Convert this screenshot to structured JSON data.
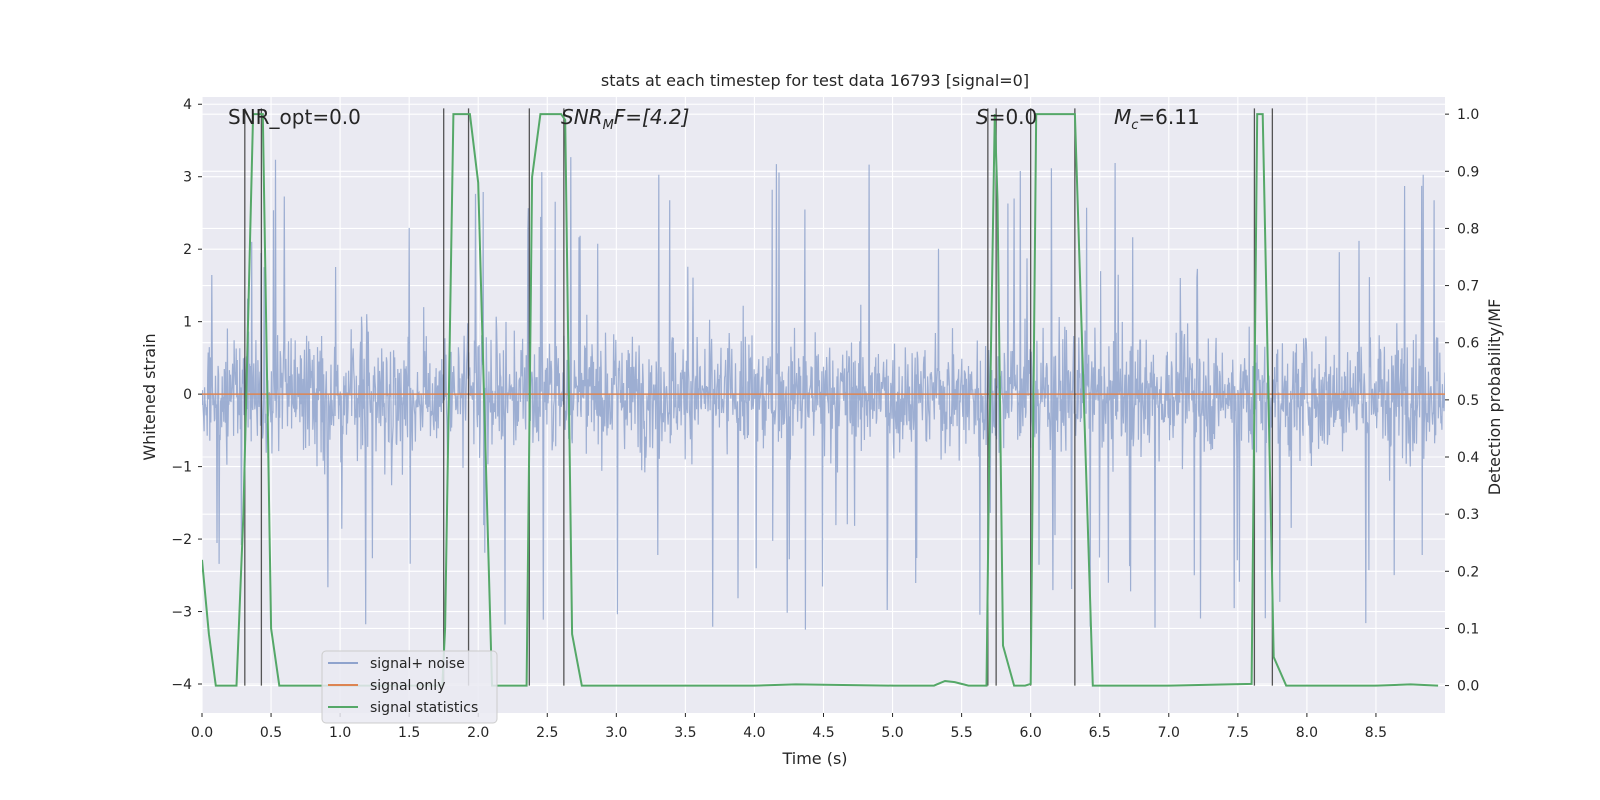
{
  "chart_data": {
    "type": "line",
    "title": "stats at each timestep for test data 16793 [signal=0]",
    "xlabel": "Time (s)",
    "ylabel_left": "Whitened strain",
    "ylabel_right": "Detection probability/MF",
    "xlim": [
      0.0,
      9.0
    ],
    "ylim_left": [
      -4.4,
      4.1
    ],
    "ylim_right": [
      -0.048,
      1.03
    ],
    "x_ticks": [
      0.0,
      0.5,
      1.0,
      1.5,
      2.0,
      2.5,
      3.0,
      3.5,
      4.0,
      4.5,
      5.0,
      5.5,
      6.0,
      6.5,
      7.0,
      7.5,
      8.0,
      8.5
    ],
    "x_tick_labels": [
      "0.0",
      "0.5",
      "1.0",
      "1.5",
      "2.0",
      "2.5",
      "3.0",
      "3.5",
      "4.0",
      "4.5",
      "5.0",
      "5.5",
      "6.0",
      "6.5",
      "7.0",
      "7.5",
      "8.0",
      "8.5"
    ],
    "y_left_ticks": [
      -4,
      -3,
      -2,
      -1,
      0,
      1,
      2,
      3,
      4
    ],
    "y_left_tick_labels": [
      "−4",
      "−3",
      "−2",
      "−1",
      "0",
      "1",
      "2",
      "3",
      "4"
    ],
    "y_right_ticks": [
      0.0,
      0.1,
      0.2,
      0.3,
      0.4,
      0.5,
      0.6,
      0.7,
      0.8,
      0.9,
      1.0
    ],
    "y_right_tick_labels": [
      "0.0",
      "0.1",
      "0.2",
      "0.3",
      "0.4",
      "0.5",
      "0.6",
      "0.7",
      "0.8",
      "0.9",
      "1.0"
    ],
    "annotations": {
      "snr_opt": "SNR_opt=0.0",
      "snr_mf_main": "SNR",
      "snr_mf_sub": "M",
      "snr_mf_rest": "F=[4.2]",
      "s_main": "S",
      "s_rest": "=0.0",
      "mc_main": "M",
      "mc_sub": "c",
      "mc_rest": "=6.11"
    },
    "legend": {
      "location": "lower-left",
      "entries": [
        "signal+ noise",
        "signal only",
        "signal statistics"
      ]
    },
    "colors": {
      "noise": "#8fa3cd",
      "signal_only": "#dd8452",
      "statistics": "#55a868",
      "markers": "#3a3a3a",
      "background": "#eaeaf2",
      "grid": "#ffffff"
    },
    "series": [
      {
        "name": "signal+ noise",
        "axis": "left",
        "kind": "noise-band",
        "x_range": [
          0.0,
          9.0
        ],
        "core_amplitude": 1.4,
        "peak_max": 3.6,
        "peak_min": -3.55
      },
      {
        "name": "signal only",
        "axis": "left",
        "x": [
          0.0,
          9.0
        ],
        "y": [
          0.0,
          0.0
        ]
      },
      {
        "name": "signal statistics",
        "axis": "right",
        "x": [
          0.0,
          0.05,
          0.1,
          0.25,
          0.3,
          0.37,
          0.44,
          0.5,
          0.56,
          1.0,
          1.3,
          1.5,
          1.74,
          1.76,
          1.82,
          1.94,
          2.0,
          2.1,
          2.2,
          2.35,
          2.39,
          2.45,
          2.6,
          2.63,
          2.68,
          2.75,
          3.0,
          4.0,
          4.3,
          5.0,
          5.3,
          5.38,
          5.45,
          5.55,
          5.68,
          5.7,
          5.74,
          5.76,
          5.8,
          5.88,
          5.96,
          6.0,
          6.04,
          6.1,
          6.32,
          6.45,
          7.0,
          7.6,
          7.64,
          7.68,
          7.76,
          7.85,
          8.0,
          8.5,
          8.75,
          8.95
        ],
        "y": [
          0.22,
          0.09,
          0.0,
          0.0,
          0.3,
          1.0,
          1.0,
          0.1,
          0.0,
          0.0,
          0.0,
          0.0,
          0.0,
          0.1,
          1.0,
          1.0,
          0.88,
          0.0,
          0.0,
          0.0,
          0.89,
          1.0,
          1.0,
          0.99,
          0.09,
          0.0,
          0.0,
          0.0,
          0.002,
          0.0,
          0.0,
          0.008,
          0.006,
          0.0,
          0.0,
          0.4,
          1.0,
          0.85,
          0.07,
          0.0,
          0.0,
          0.003,
          1.0,
          1.0,
          1.0,
          0.0,
          0.0,
          0.003,
          1.0,
          1.0,
          0.05,
          0.0,
          0.0,
          0.0,
          0.002,
          0.0
        ]
      }
    ],
    "vertical_markers_x": [
      0.31,
      0.43,
      1.75,
      1.93,
      2.37,
      2.62,
      5.69,
      5.75,
      6.0,
      6.32,
      7.62,
      7.75
    ]
  }
}
